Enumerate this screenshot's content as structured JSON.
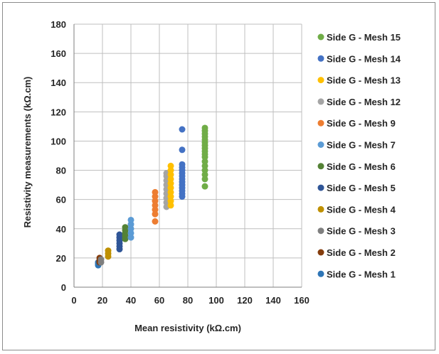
{
  "chart_data": {
    "type": "scatter",
    "title": "",
    "xlabel": "Mean resistivity (kΩ.cm)",
    "ylabel": "Resistivity measurements (kΩ.cm)",
    "xlim": [
      0,
      160
    ],
    "ylim": [
      0,
      180
    ],
    "xticks": [
      0,
      20,
      40,
      60,
      80,
      100,
      120,
      140,
      160
    ],
    "yticks": [
      0,
      20,
      40,
      60,
      80,
      100,
      120,
      140,
      160,
      180
    ],
    "grid": true,
    "legend_position": "right",
    "series": [
      {
        "name": "Side G - Mesh 15",
        "color": "#70ad47",
        "x": 92,
        "y": [
          69,
          74,
          77,
          80,
          83,
          86,
          89,
          91,
          93,
          95,
          97,
          99,
          101,
          103,
          105,
          107,
          109
        ]
      },
      {
        "name": "Side G - Mesh 14",
        "color": "#4472c4",
        "x": 76,
        "y": [
          62,
          64,
          66,
          68,
          70,
          72,
          74,
          76,
          78,
          80,
          82,
          84,
          94,
          108
        ]
      },
      {
        "name": "Side G - Mesh 13",
        "color": "#ffc000",
        "x": 68,
        "y": [
          56,
          59,
          62,
          65,
          68,
          71,
          74,
          77,
          80,
          83
        ]
      },
      {
        "name": "Side G - Mesh 12",
        "color": "#a5a5a5",
        "x": 65,
        "y": [
          55,
          58,
          61,
          64,
          67,
          70,
          73,
          76,
          78
        ]
      },
      {
        "name": "Side G - Mesh 9",
        "color": "#ed7d31",
        "x": 57,
        "y": [
          45,
          50,
          53,
          56,
          59,
          62,
          65
        ]
      },
      {
        "name": "Side G - Mesh 7",
        "color": "#5b9bd5",
        "x": 40,
        "y": [
          34,
          37,
          40,
          43,
          46
        ]
      },
      {
        "name": "Side G - Mesh 6",
        "color": "#548235",
        "x": 36,
        "y": [
          33,
          35,
          37,
          39,
          41
        ]
      },
      {
        "name": "Side G - Mesh 5",
        "color": "#2f5597",
        "x": 32,
        "y": [
          26,
          28,
          30,
          32,
          34,
          36
        ]
      },
      {
        "name": "Side G - Mesh 4",
        "color": "#bf9000",
        "x": 24,
        "y": [
          21,
          23,
          25
        ]
      },
      {
        "name": "Side G - Mesh 3",
        "color": "#7f7f7f",
        "x": 19,
        "y": [
          17,
          19
        ]
      },
      {
        "name": "Side G - Mesh 2",
        "color": "#843c0c",
        "x": 18,
        "y": [
          17,
          18,
          20
        ]
      },
      {
        "name": "Side G - Mesh 1",
        "color": "#2e75b6",
        "x": 17,
        "y": [
          15,
          16,
          17
        ]
      }
    ]
  }
}
